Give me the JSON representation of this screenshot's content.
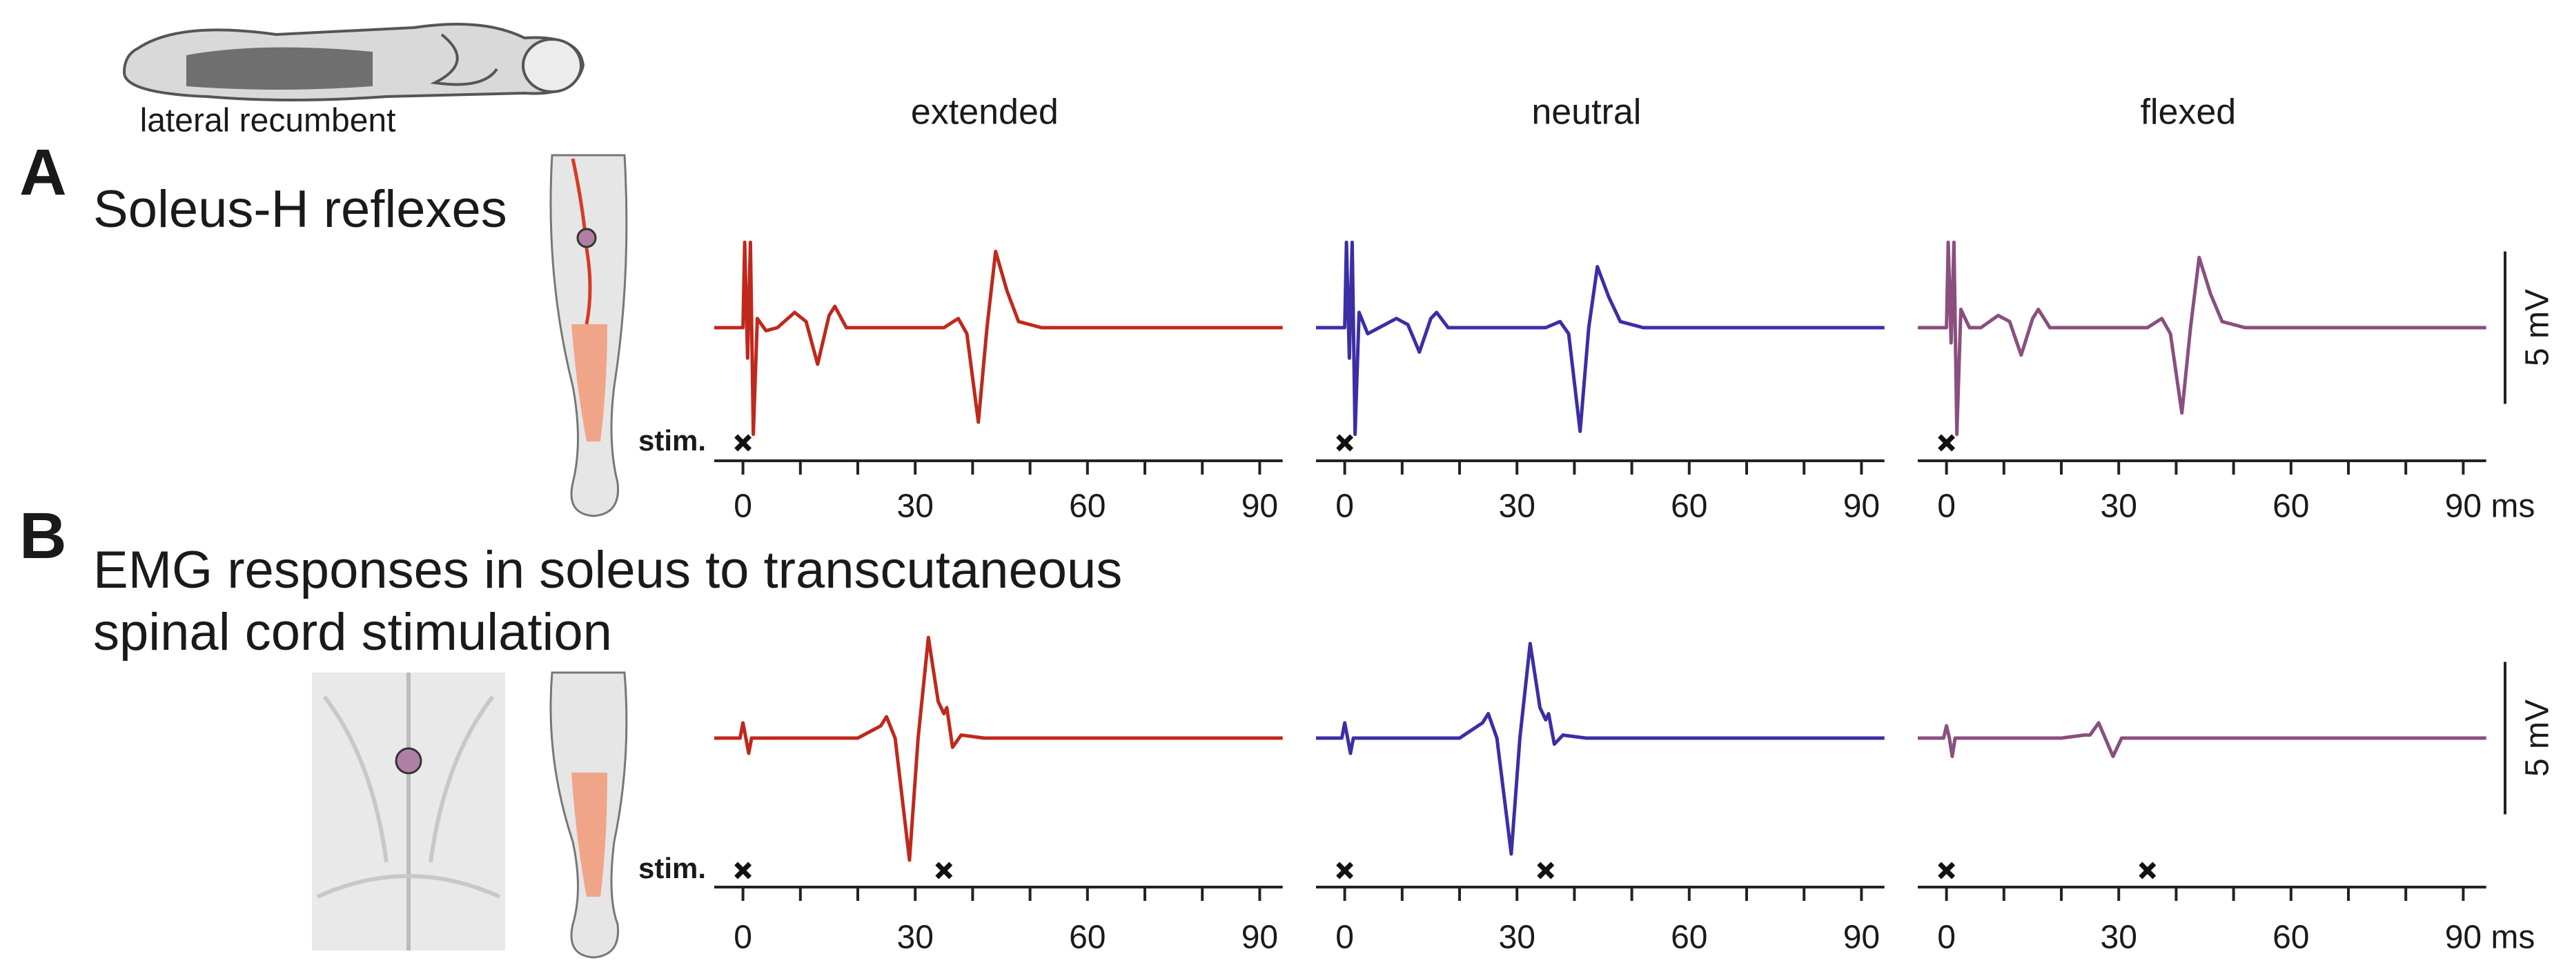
{
  "illustration_label": "lateral recumbent",
  "rows": [
    {
      "letter": "A",
      "title_lines": [
        "Soleus-H reflexes"
      ]
    },
    {
      "letter": "B",
      "title_lines": [
        "EMG responses in soleus to transcutaneous",
        "spinal cord stimulation"
      ]
    }
  ],
  "chart_data": [
    {
      "type": "line",
      "title": "extended",
      "color": "#c0281c",
      "stim_label": "stim.",
      "stim": [
        0
      ],
      "x": [
        -5,
        0,
        0.3,
        0.8,
        1.3,
        1.8,
        2.5,
        4,
        6,
        9,
        11,
        13,
        15,
        16,
        18,
        25,
        35,
        37.5,
        39,
        41,
        42.5,
        44,
        46,
        48,
        52,
        60,
        94
      ],
      "values": [
        0,
        0,
        2.8,
        -1,
        2.8,
        -3.5,
        0.3,
        -0.1,
        0,
        0.5,
        0.2,
        -1.2,
        0.4,
        0.7,
        0,
        0,
        0,
        0.3,
        -0.2,
        -3.1,
        0,
        2.5,
        1.2,
        0.2,
        0,
        0,
        0
      ],
      "xlim": [
        -5,
        94
      ],
      "xticks": [
        0,
        30,
        60,
        90
      ],
      "x_minor_ticks": [
        10,
        20,
        40,
        50,
        70,
        80
      ],
      "ylim": [
        -4.5,
        3.5
      ]
    },
    {
      "type": "line",
      "title": "neutral",
      "color": "#3b2ea6",
      "stim": [
        0
      ],
      "x": [
        -5,
        0,
        0.3,
        0.8,
        1.3,
        1.8,
        2.5,
        4,
        6,
        9,
        11,
        13,
        15,
        16,
        18,
        25,
        35,
        37.5,
        39,
        41,
        42.5,
        44,
        46,
        48,
        52,
        60,
        94
      ],
      "values": [
        0,
        0,
        2.8,
        -1,
        2.8,
        -3.5,
        0.5,
        -0.2,
        0,
        0.3,
        0.1,
        -0.8,
        0.3,
        0.5,
        0,
        0,
        0,
        0.2,
        -0.2,
        -3.4,
        0,
        2.0,
        1.0,
        0.2,
        0,
        0,
        0
      ],
      "xlim": [
        -5,
        94
      ],
      "xticks": [
        0,
        30,
        60,
        90
      ],
      "x_minor_ticks": [
        10,
        20,
        40,
        50,
        70,
        80
      ],
      "ylim": [
        -4.5,
        3.5
      ]
    },
    {
      "type": "line",
      "title": "flexed",
      "color": "#8a4f7e",
      "stim": [
        0
      ],
      "x_unit": "ms",
      "scale_bar": {
        "value": 5,
        "label": "5 mV"
      },
      "x": [
        -5,
        0,
        0.3,
        0.8,
        1.3,
        1.8,
        2.5,
        4,
        6,
        9,
        11,
        13,
        15,
        16,
        18,
        25,
        35,
        37.5,
        39,
        41,
        42.5,
        44,
        46,
        48,
        52,
        60,
        94
      ],
      "values": [
        0,
        0,
        2.8,
        -0.5,
        2.8,
        -3.5,
        0.6,
        0,
        0,
        0.4,
        0.2,
        -0.9,
        0.3,
        0.6,
        0,
        0,
        0,
        0.3,
        -0.2,
        -2.8,
        0,
        2.3,
        1.1,
        0.2,
        0,
        0,
        0
      ],
      "xlim": [
        -5,
        94
      ],
      "xticks": [
        0,
        30,
        60,
        90
      ],
      "x_minor_ticks": [
        10,
        20,
        40,
        50,
        70,
        80
      ],
      "ylim": [
        -4.5,
        3.5
      ]
    },
    {
      "type": "line",
      "color": "#c0281c",
      "stim_label": "stim.",
      "stim": [
        0,
        35
      ],
      "x": [
        -5,
        -0.5,
        0,
        0.5,
        1,
        1.5,
        2.5,
        20,
        24,
        25,
        26.5,
        29,
        30.5,
        32.3,
        34,
        35,
        35.5,
        36.5,
        38,
        42,
        60,
        94
      ],
      "values": [
        0,
        0,
        0.5,
        0,
        -0.5,
        0,
        0,
        0,
        0.4,
        0.7,
        0,
        -4.0,
        0,
        3.3,
        1.2,
        0.8,
        1.0,
        -0.3,
        0.1,
        0,
        0,
        0
      ],
      "xlim": [
        -5,
        94
      ],
      "xticks": [
        0,
        30,
        60,
        90
      ],
      "x_minor_ticks": [
        10,
        20,
        40,
        50,
        70,
        80
      ],
      "ylim": [
        -4.5,
        3.5
      ]
    },
    {
      "type": "line",
      "color": "#3b2ea6",
      "stim": [
        0,
        35
      ],
      "x": [
        -5,
        -0.5,
        0,
        0.5,
        1,
        1.5,
        2.5,
        20,
        24,
        25,
        26.5,
        29,
        30.5,
        32.3,
        34,
        35,
        35.5,
        36.5,
        38,
        42,
        60,
        94
      ],
      "values": [
        0,
        0,
        0.5,
        0,
        -0.5,
        0,
        0,
        0,
        0.5,
        0.8,
        0,
        -3.8,
        0,
        3.1,
        1.0,
        0.6,
        0.8,
        -0.2,
        0.1,
        0,
        0,
        0
      ],
      "xlim": [
        -5,
        94
      ],
      "xticks": [
        0,
        30,
        60,
        90
      ],
      "x_minor_ticks": [
        10,
        20,
        40,
        50,
        70,
        80
      ],
      "ylim": [
        -4.5,
        3.5
      ]
    },
    {
      "type": "line",
      "color": "#8a4f7e",
      "stim": [
        0,
        35
      ],
      "x_unit": "ms",
      "scale_bar": {
        "value": 5,
        "label": "5 mV"
      },
      "x": [
        -5,
        -0.5,
        0,
        0.5,
        1,
        1.5,
        2.5,
        20,
        24,
        25,
        26.5,
        29,
        30.5,
        32.3,
        34,
        35,
        35.5,
        36.5,
        38,
        42,
        60,
        94
      ],
      "values": [
        0,
        0,
        0.4,
        0,
        -0.6,
        0,
        0,
        0,
        0.1,
        0.1,
        0.5,
        -0.6,
        0,
        0,
        0,
        0,
        0,
        0,
        0,
        0,
        0,
        0
      ],
      "xlim": [
        -5,
        94
      ],
      "xticks": [
        0,
        30,
        60,
        90
      ],
      "x_minor_ticks": [
        10,
        20,
        40,
        50,
        70,
        80
      ],
      "ylim": [
        -4.5,
        3.5
      ]
    }
  ]
}
